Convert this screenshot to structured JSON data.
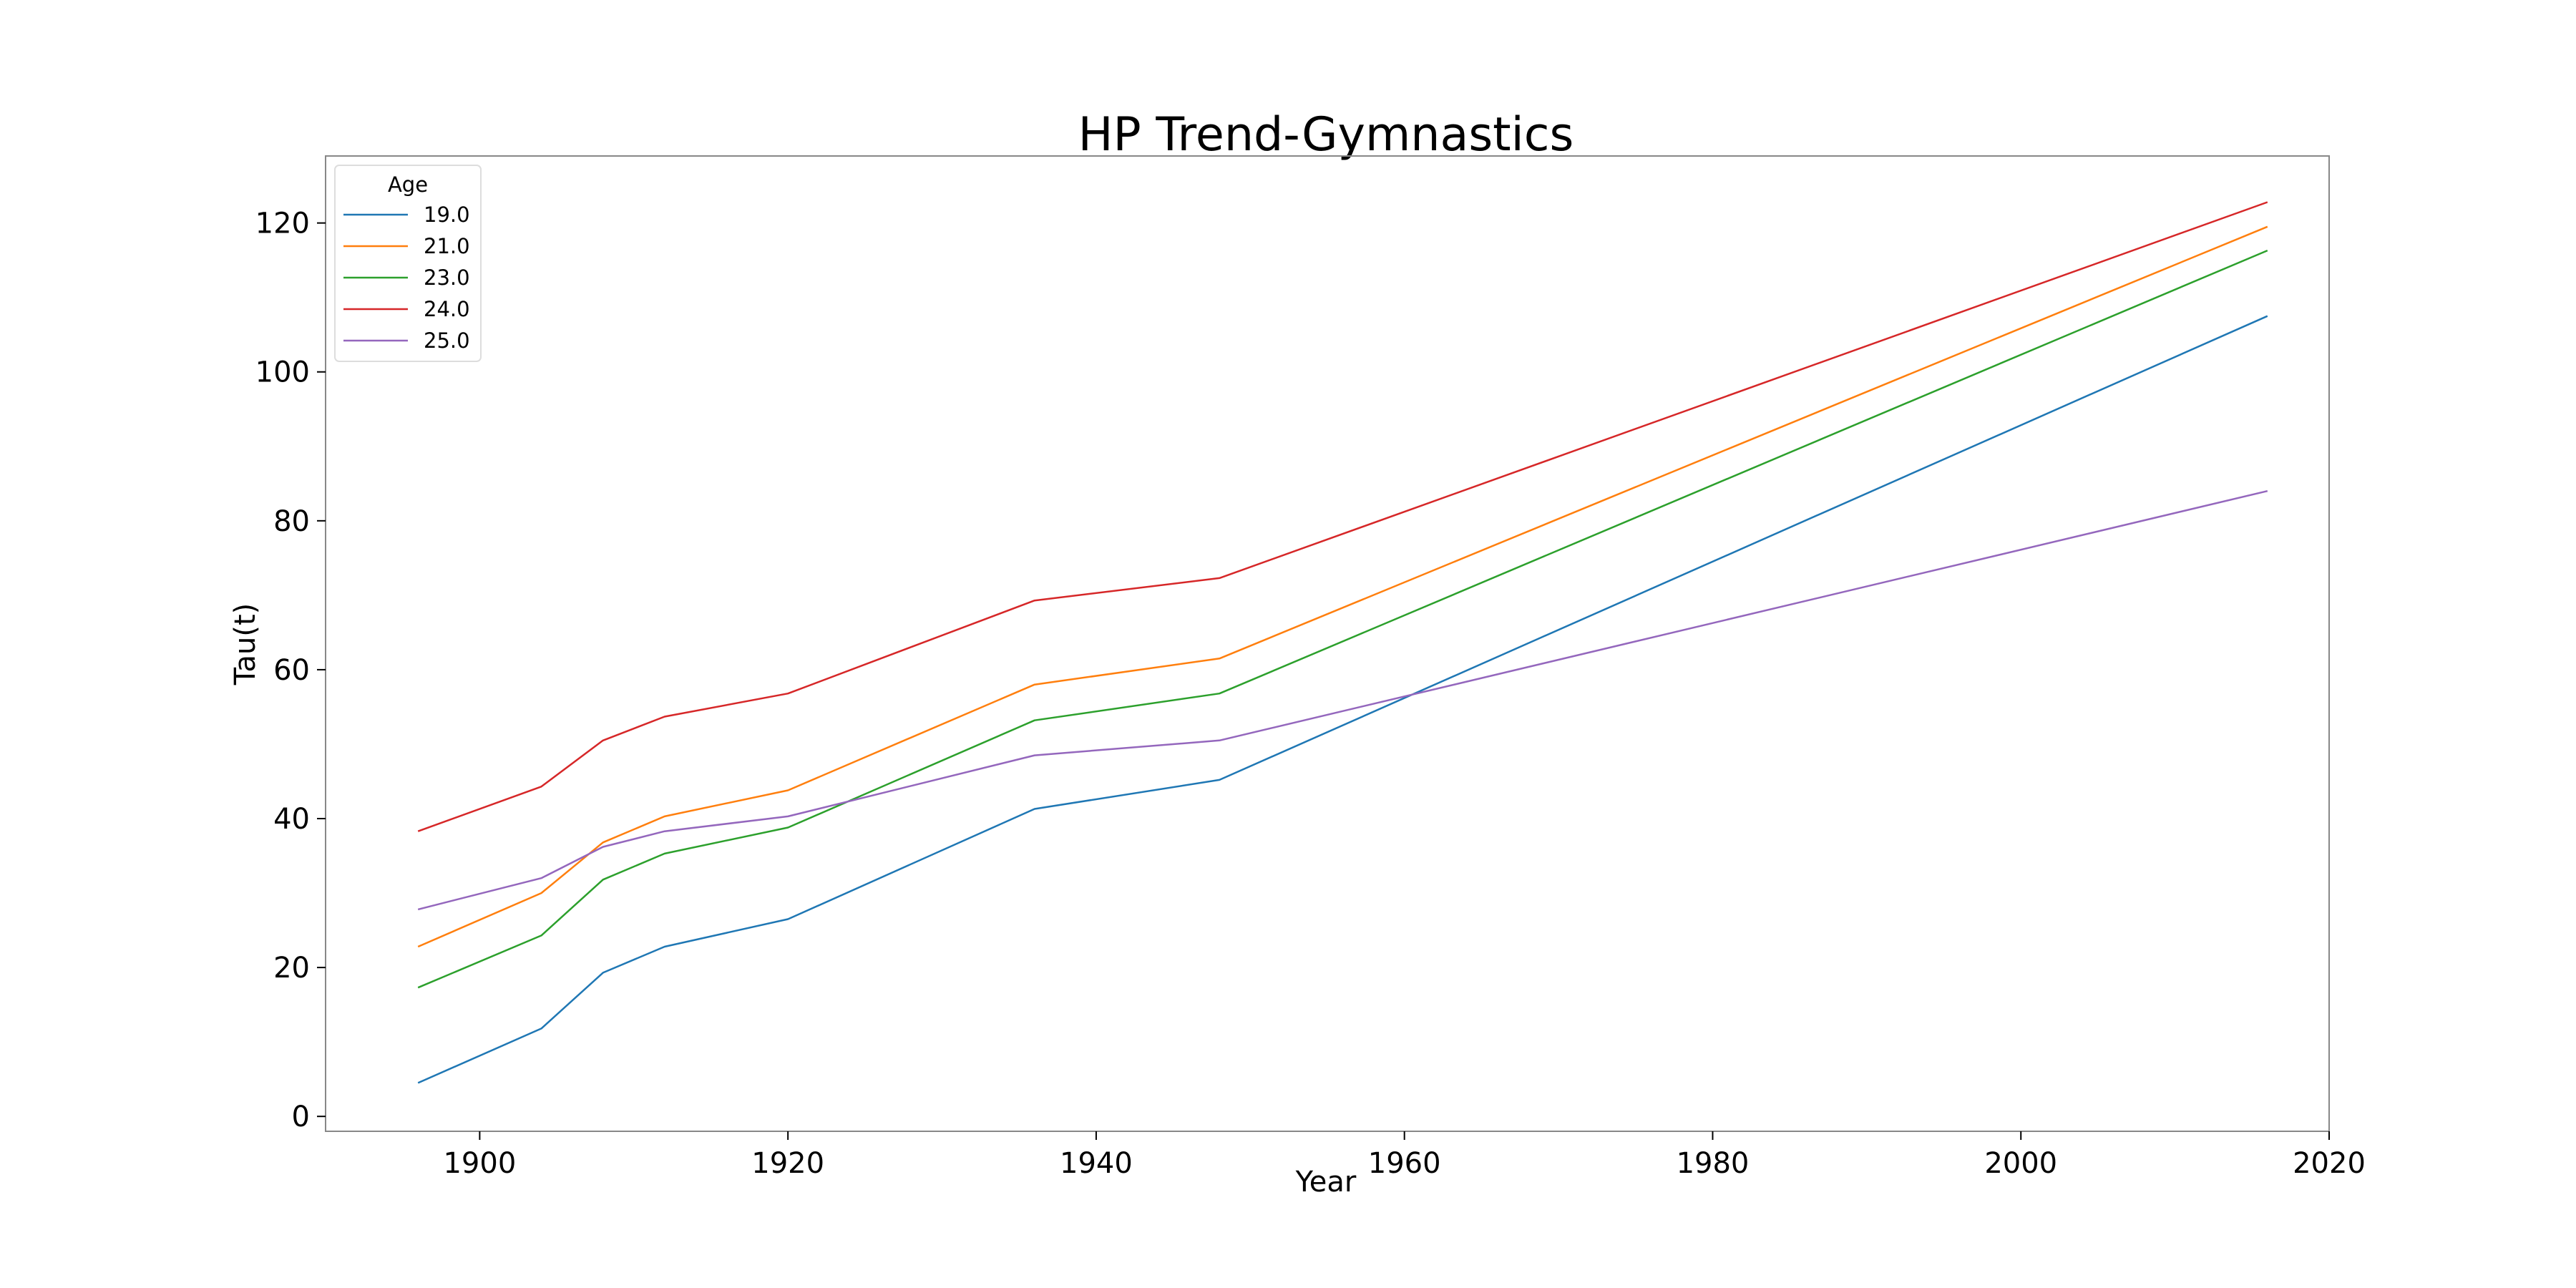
{
  "chart_data": {
    "type": "line",
    "title": "HP Trend-Gymnastics",
    "xlabel": "Year",
    "ylabel": "Tau(t)",
    "xlim": [
      1890,
      2020
    ],
    "ylim": [
      -2,
      129
    ],
    "xticks": [
      1900,
      1920,
      1940,
      1960,
      1980,
      2000,
      2020
    ],
    "yticks": [
      0,
      20,
      40,
      60,
      80,
      100,
      120
    ],
    "grid": false,
    "legend": {
      "title": "Age",
      "position": "top-left"
    },
    "x": [
      1896,
      1904,
      1908,
      1912,
      1920,
      1936,
      1948,
      2016
    ],
    "series": [
      {
        "name": "19.0",
        "color": "#1f77b4",
        "values": [
          4.5,
          11.8,
          19.3,
          22.8,
          26.5,
          41.3,
          45.2,
          107.5
        ]
      },
      {
        "name": "21.0",
        "color": "#ff7f0e",
        "values": [
          22.8,
          30.0,
          36.8,
          40.3,
          43.8,
          58.0,
          61.5,
          119.5
        ]
      },
      {
        "name": "23.0",
        "color": "#2ca02c",
        "values": [
          17.3,
          24.3,
          31.8,
          35.3,
          38.8,
          53.2,
          56.8,
          116.3
        ]
      },
      {
        "name": "24.0",
        "color": "#d62728",
        "values": [
          38.3,
          44.3,
          50.5,
          53.7,
          56.8,
          69.3,
          72.3,
          122.8
        ]
      },
      {
        "name": "25.0",
        "color": "#9467bd",
        "values": [
          27.8,
          32.0,
          36.2,
          38.3,
          40.3,
          48.5,
          50.5,
          84.0
        ]
      }
    ]
  }
}
